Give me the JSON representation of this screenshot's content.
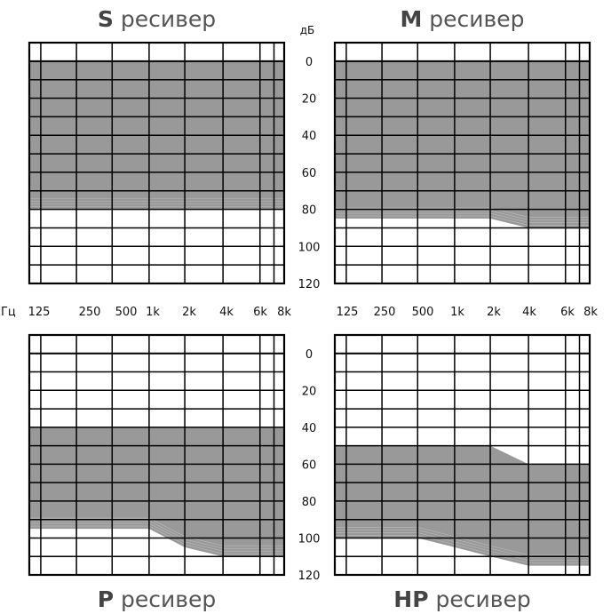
{
  "chart_data": [
    {
      "type": "area",
      "title": "S ресивер",
      "title_bold": "S",
      "title_rest": " ресивер",
      "fill_color": "#999999",
      "x": [
        "125",
        "250",
        "500",
        "1k",
        "2k",
        "4k",
        "6k",
        "8k"
      ],
      "ylim": [
        0,
        120
      ],
      "y_inverted": true,
      "series": [
        {
          "lower": [
            0,
            0,
            0,
            0,
            0,
            0,
            0,
            0
          ],
          "upper": [
            80,
            80,
            80,
            80,
            80,
            80,
            80,
            80
          ]
        }
      ]
    },
    {
      "type": "area",
      "title": "M ресивер",
      "title_bold": "M",
      "title_rest": " ресивер",
      "fill_color": "#999999",
      "x": [
        "125",
        "250",
        "500",
        "1k",
        "2k",
        "4k",
        "6k",
        "8k"
      ],
      "ylim": [
        0,
        120
      ],
      "y_inverted": true,
      "series": [
        {
          "lower": [
            0,
            0,
            0,
            0,
            0,
            0,
            0,
            0
          ],
          "upper": [
            85,
            85,
            85,
            85,
            85,
            90,
            90,
            90
          ]
        }
      ]
    },
    {
      "type": "area",
      "title": "P ресивер",
      "title_bold": "P",
      "title_rest": " ресивер",
      "fill_color": "#999999",
      "x": [
        "125",
        "250",
        "500",
        "1k",
        "2k",
        "4k",
        "6k",
        "8k"
      ],
      "ylim": [
        0,
        120
      ],
      "y_inverted": true,
      "series": [
        {
          "lower": [
            40,
            40,
            40,
            40,
            40,
            40,
            40,
            40
          ],
          "upper": [
            95,
            95,
            95,
            95,
            105,
            110,
            110,
            110
          ]
        }
      ]
    },
    {
      "type": "area",
      "title": "HP ресивер",
      "title_bold": "HP",
      "title_rest": " ресивер",
      "fill_color": "#999999",
      "x": [
        "125",
        "250",
        "500",
        "1k",
        "2k",
        "4k",
        "6k",
        "8k"
      ],
      "ylim": [
        0,
        120
      ],
      "y_inverted": true,
      "series": [
        {
          "lower": [
            50,
            50,
            50,
            50,
            50,
            60,
            60,
            60
          ],
          "upper": [
            100,
            100,
            100,
            105,
            110,
            115,
            115,
            115
          ]
        }
      ]
    }
  ],
  "axes": {
    "y_unit": "дБ",
    "x_unit": "Гц",
    "y_ticks": [
      "0",
      "20",
      "40",
      "60",
      "80",
      "100",
      "120"
    ],
    "x_ticks": [
      "125",
      "250",
      "500",
      "1k",
      "2k",
      "4k",
      "6k",
      "8k"
    ]
  }
}
